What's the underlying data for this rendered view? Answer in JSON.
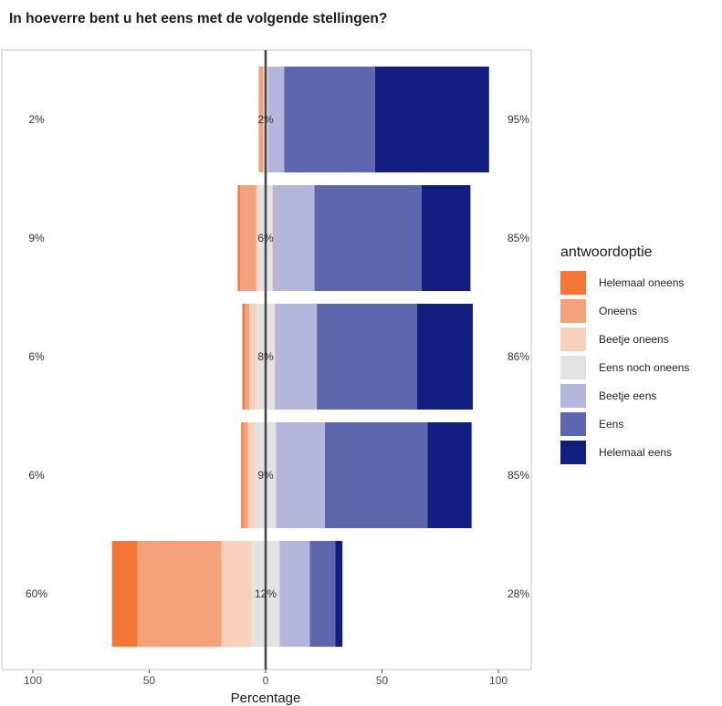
{
  "header": {
    "title": "In hoeverre bent u het eens met de volgende stellingen?"
  },
  "chart_data": {
    "type": "bar",
    "orientation": "horizontal",
    "stacking": "diverging",
    "title": "",
    "xlabel": "Percentage",
    "ylabel": "",
    "xlim": [
      -100,
      100
    ],
    "x_ticks": [
      -100,
      -50,
      0,
      50,
      100
    ],
    "x_tick_labels": [
      "100",
      "50",
      "0",
      "50",
      "100"
    ],
    "grid": false,
    "legend": {
      "title": "antwoordoptie",
      "position": "right"
    },
    "series": [
      {
        "name": "Helemaal oneens",
        "color": "#f47738",
        "values": [
          0,
          1,
          1,
          1,
          11
        ]
      },
      {
        "name": "Oneens",
        "color": "#f4a27a",
        "values": [
          2,
          7,
          2,
          2,
          36
        ]
      },
      {
        "name": "Beetje oneens",
        "color": "#f9d0bc",
        "values": [
          0,
          1,
          3,
          3,
          13
        ]
      },
      {
        "name": "Eens noch oneens",
        "color": "#e3e3e3",
        "values": [
          2,
          6,
          8,
          9,
          12
        ]
      },
      {
        "name": "Beetje eens",
        "color": "#b4b7db",
        "values": [
          7,
          18,
          18,
          21,
          13
        ]
      },
      {
        "name": "Eens",
        "color": "#5e67ad",
        "values": [
          39,
          46,
          43,
          44,
          11
        ]
      },
      {
        "name": "Helemaal eens",
        "color": "#131f80",
        "values": [
          49,
          21,
          24,
          19,
          3
        ]
      }
    ],
    "row_labels": [
      {
        "left": "2%",
        "center": "2%",
        "right": "95%"
      },
      {
        "left": "9%",
        "center": "6%",
        "right": "85%"
      },
      {
        "left": "6%",
        "center": "8%",
        "right": "86%"
      },
      {
        "left": "6%",
        "center": "9%",
        "right": "85%"
      },
      {
        "left": "60%",
        "center": "12%",
        "right": "28%"
      }
    ]
  }
}
